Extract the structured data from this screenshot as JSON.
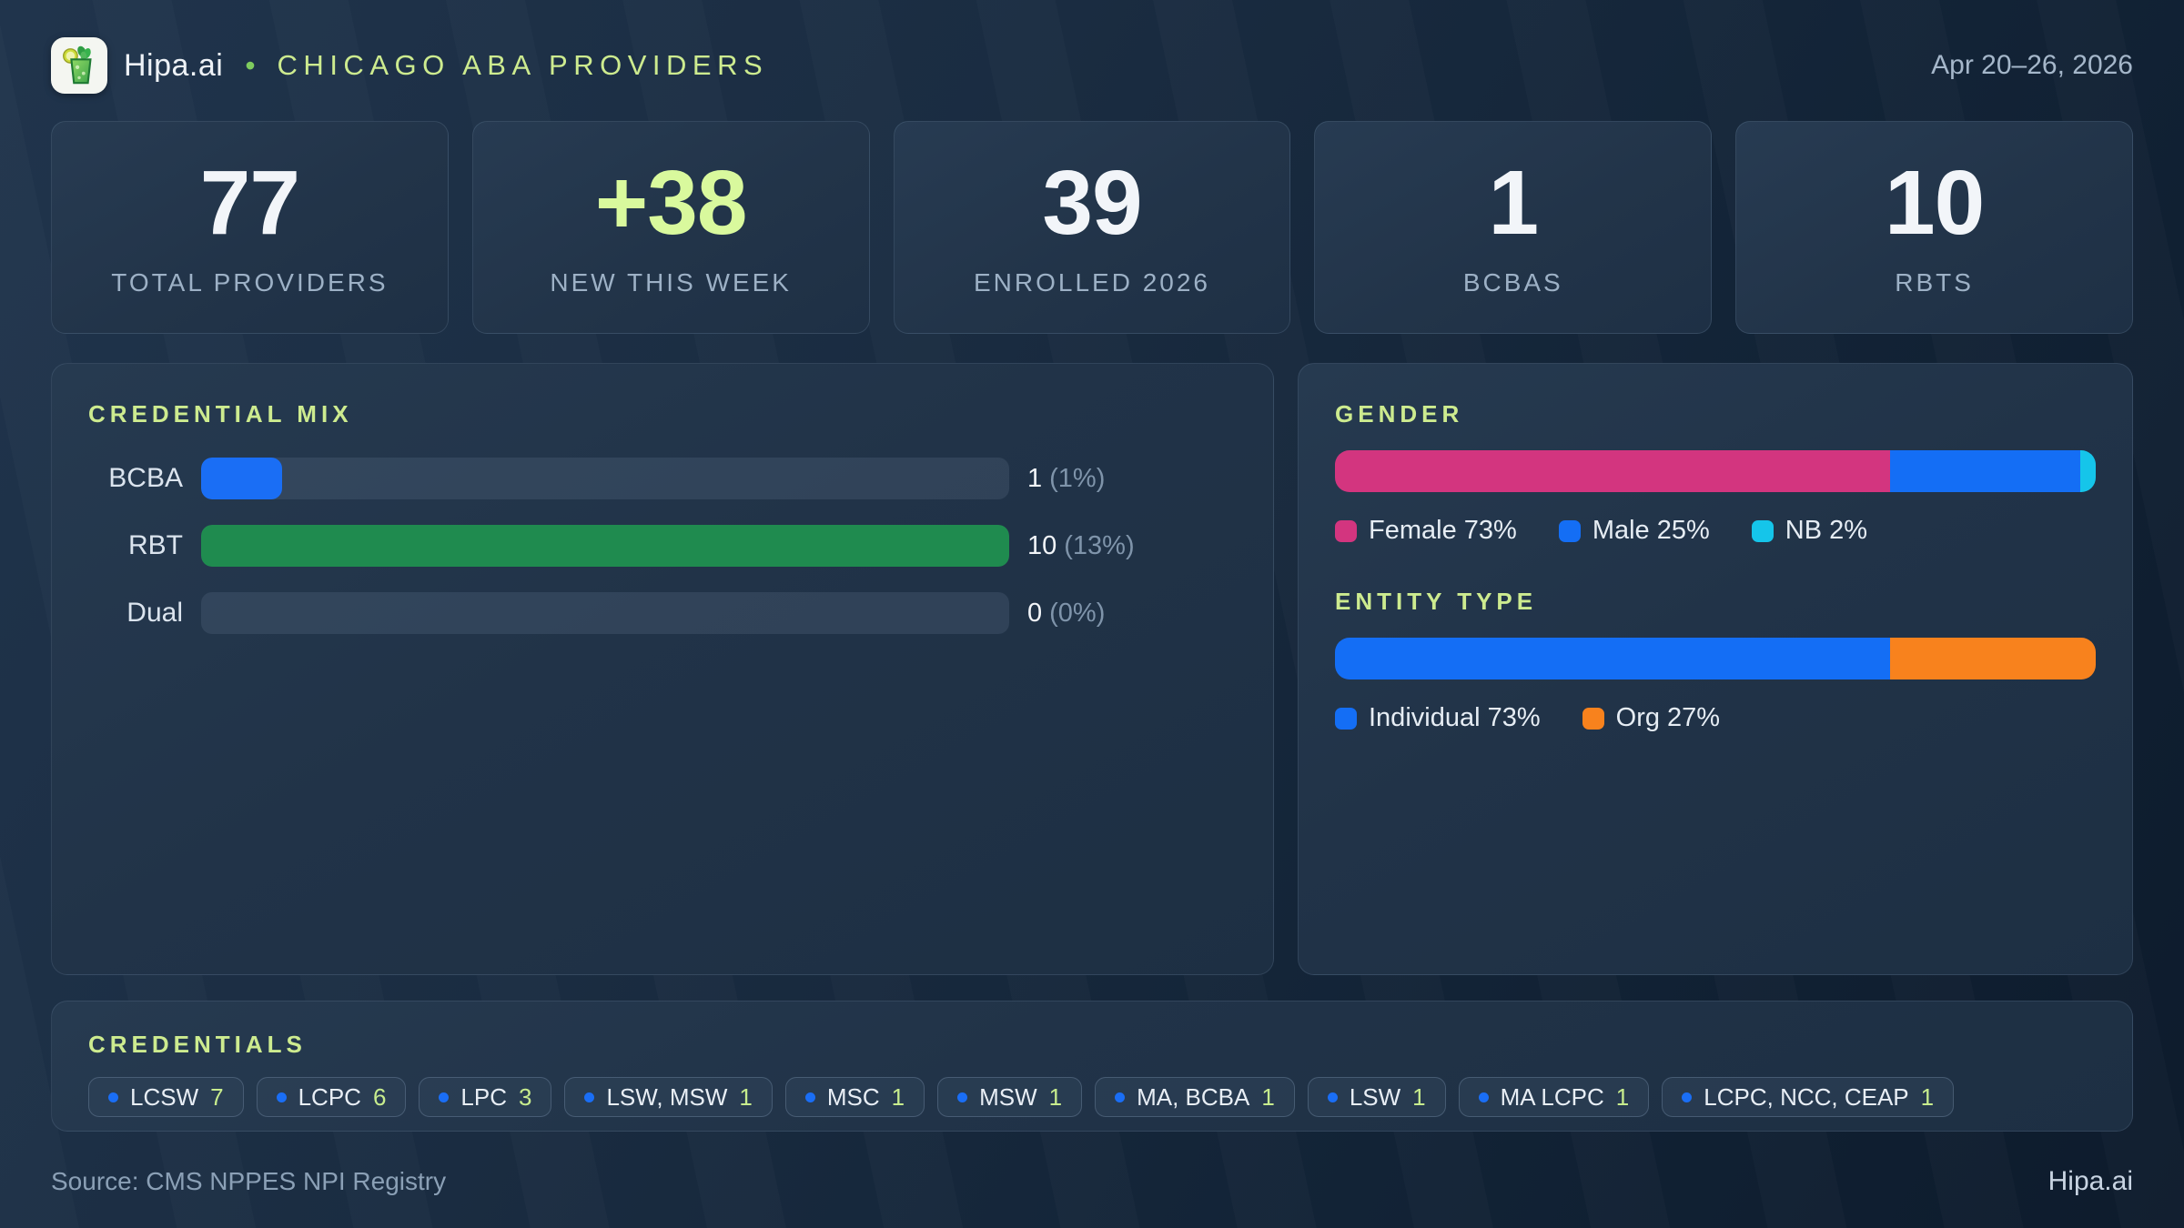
{
  "header": {
    "brand": "Hipa.ai",
    "separator": "•",
    "title": "CHICAGO ABA PROVIDERS",
    "date_range": "Apr 20–26, 2026"
  },
  "stats": [
    {
      "value": "77",
      "label": "TOTAL PROVIDERS"
    },
    {
      "value": "+38",
      "label": "NEW THIS WEEK"
    },
    {
      "value": "39",
      "label": "ENROLLED 2026"
    },
    {
      "value": "1",
      "label": "BCBAS"
    },
    {
      "value": "10",
      "label": "RBTS"
    }
  ],
  "credential_mix": {
    "heading": "CREDENTIAL MIX",
    "rows": [
      {
        "label": "BCBA",
        "count": "1",
        "pct_label": "(1%)",
        "fill_pct": 10,
        "color": "#1a6ef5"
      },
      {
        "label": "RBT",
        "count": "10",
        "pct_label": "(13%)",
        "fill_pct": 100,
        "color": "#1f8b4f"
      },
      {
        "label": "Dual",
        "count": "0",
        "pct_label": "(0%)",
        "fill_pct": 0,
        "color": "#1a6ef5"
      }
    ]
  },
  "gender": {
    "heading": "GENDER",
    "segments": [
      {
        "label": "Female 73%",
        "pct": 73,
        "color": "#d3357f"
      },
      {
        "label": "Male 25%",
        "pct": 25,
        "color": "#146ef5"
      },
      {
        "label": "NB 2%",
        "pct": 2,
        "color": "#15c5ea"
      }
    ]
  },
  "entity_type": {
    "heading": "ENTITY TYPE",
    "segments": [
      {
        "label": "Individual 73%",
        "pct": 73,
        "color": "#146ef5"
      },
      {
        "label": "Org 27%",
        "pct": 27,
        "color": "#f8821d"
      }
    ]
  },
  "credentials": {
    "heading": "CREDENTIALS",
    "chips": [
      {
        "label": "LCSW",
        "count": "7"
      },
      {
        "label": "LCPC",
        "count": "6"
      },
      {
        "label": "LPC",
        "count": "3"
      },
      {
        "label": "LSW, MSW",
        "count": "1"
      },
      {
        "label": "MSC",
        "count": "1"
      },
      {
        "label": "MSW",
        "count": "1"
      },
      {
        "label": "MA, BCBA",
        "count": "1"
      },
      {
        "label": "LSW",
        "count": "1"
      },
      {
        "label": "MA LCPC",
        "count": "1"
      },
      {
        "label": "LCPC, NCC, CEAP",
        "count": "1"
      }
    ]
  },
  "footer": {
    "source": "Source: CMS NPPES NPI Registry",
    "brand": "Hipa.ai"
  },
  "colors": {
    "accent-green": "#cdeb8f",
    "highlight-green": "#d9f99d",
    "chip-green": "#c7ec8d",
    "bar-blue": "#1a6ef5",
    "bar-green": "#1f8b4f",
    "bar-pink": "#d3357f",
    "bar-cyan": "#15c5ea",
    "bar-orange": "#f8821d"
  },
  "chart_data": [
    {
      "type": "bar",
      "title": "CREDENTIAL MIX",
      "categories": [
        "BCBA",
        "RBT",
        "Dual"
      ],
      "values": [
        1,
        10,
        0
      ],
      "value_labels": [
        "1 (1%)",
        "10 (13%)",
        "0 (0%)"
      ],
      "xlabel": "",
      "ylabel": "",
      "orientation": "horizontal",
      "xlim": [
        0,
        10
      ],
      "grid": false
    },
    {
      "type": "bar",
      "subtype": "stacked-100",
      "title": "GENDER",
      "categories": [
        "Female",
        "Male",
        "NB"
      ],
      "values": [
        73,
        25,
        2
      ],
      "unit": "%",
      "legend_position": "bottom"
    },
    {
      "type": "bar",
      "subtype": "stacked-100",
      "title": "ENTITY TYPE",
      "categories": [
        "Individual",
        "Org"
      ],
      "values": [
        73,
        27
      ],
      "unit": "%",
      "legend_position": "bottom"
    },
    {
      "type": "table",
      "title": "CREDENTIALS",
      "categories": [
        "LCSW",
        "LCPC",
        "LPC",
        "LSW, MSW",
        "MSC",
        "MSW",
        "MA, BCBA",
        "LSW",
        "MA LCPC",
        "LCPC, NCC, CEAP"
      ],
      "values": [
        7,
        6,
        3,
        1,
        1,
        1,
        1,
        1,
        1,
        1
      ]
    }
  ]
}
